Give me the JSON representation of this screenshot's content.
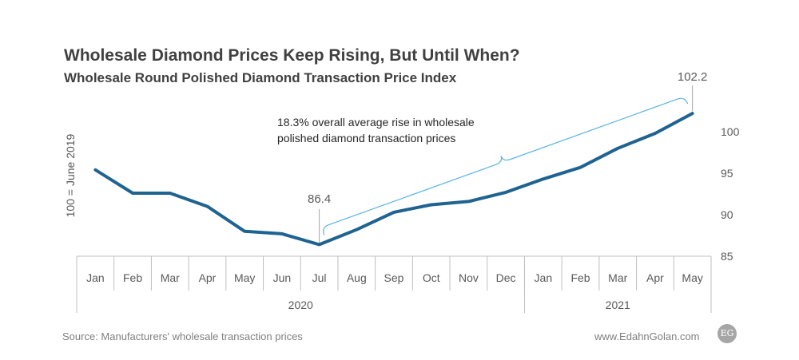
{
  "title": "Wholesale Diamond Prices Keep Rising, But Until When?",
  "subtitle": "Wholesale Round Polished Diamond Transaction Price Index",
  "source": "Source: Manufacturers' wholesale transaction prices",
  "website": "www.EdahnGolan.com",
  "logo_text": "EG",
  "colors": {
    "line": "#1f6391",
    "bracket": "#5ab4e6",
    "axis": "#bfbfbf",
    "text": "#595959"
  },
  "chart_data": {
    "type": "line",
    "title": "Wholesale Round Polished Diamond Transaction Price Index",
    "ylabel": "100 = June 2019",
    "xlabel": "",
    "categories": [
      "Jan",
      "Feb",
      "Mar",
      "Apr",
      "May",
      "Jun",
      "Jul",
      "Aug",
      "Sep",
      "Oct",
      "Nov",
      "Dec",
      "Jan",
      "Feb",
      "Mar",
      "Apr",
      "May"
    ],
    "year_groups": [
      {
        "label": "2020",
        "count": 12
      },
      {
        "label": "2021",
        "count": 5
      }
    ],
    "series": [
      {
        "values": [
          95.4,
          92.6,
          92.6,
          91.0,
          88.0,
          87.7,
          86.4,
          88.2,
          90.3,
          91.2,
          91.6,
          92.7,
          94.3,
          95.7,
          98.0,
          99.8,
          102.2
        ]
      }
    ],
    "ylim": [
      85,
      102.5
    ],
    "yticks": [
      85,
      90,
      95,
      100
    ],
    "y_axis_position": "right",
    "grid": false,
    "annotations": {
      "low_label": "86.4",
      "low_index": 6,
      "high_label": "102.2",
      "high_index": 16,
      "rise_text_line1": "18.3% overall average rise in wholesale",
      "rise_text_line2": "polished diamond transaction prices"
    }
  }
}
